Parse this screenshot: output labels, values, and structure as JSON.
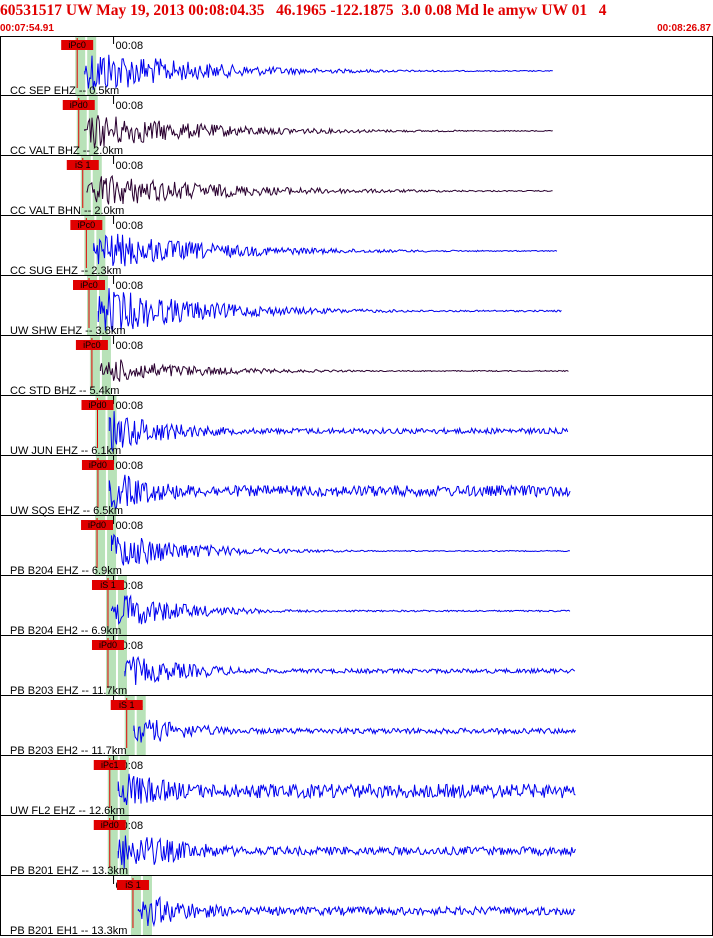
{
  "header": {
    "title": "60531517 UW May 19, 2013 00:08:04.35   46.1965 -122.1875  3.0 0.08 Md le amyw UW 01   4",
    "start_time": "00:07:54.91",
    "end_time": "00:08:26.87"
  },
  "colors": {
    "trace_blue": "#0000ee",
    "trace_dark": "#2a0030",
    "pick_red": "#e00000",
    "window_green": "#b8e2b8",
    "label_text": "#000000",
    "border": "#000000"
  },
  "chart_data": {
    "type": "seismogram",
    "time_range": [
      "00:07:54.91",
      "00:08:26.87"
    ],
    "time_tick_label": "00:08",
    "channels": [
      {
        "label": "CC SEP EHZ -- 0.5km",
        "pick": "iPc0",
        "pick_t": 3.46,
        "s_pick": null,
        "color": "blue",
        "on": 3.8,
        "off": 24.8,
        "amp": 1.0,
        "noise": 0.02,
        "decay": 4.5
      },
      {
        "label": "CC VALT BHZ -- 2.0km",
        "pick": "iPd0",
        "pick_t": 3.53,
        "s_pick": null,
        "color": "dark",
        "on": 3.8,
        "off": 24.8,
        "amp": 0.75,
        "noise": 0.02,
        "decay": 5.0
      },
      {
        "label": "CC VALT BHN -- 2.0km",
        "pick": "iS 1",
        "pick_t": 3.71,
        "s_pick": 3.71,
        "color": "dark",
        "on": 3.9,
        "off": 24.8,
        "amp": 0.7,
        "noise": 0.02,
        "decay": 5.5
      },
      {
        "label": "CC SUG EHZ -- 2.3km",
        "pick": "iPc0",
        "pick_t": 3.87,
        "s_pick": null,
        "color": "blue",
        "on": 4.2,
        "off": 25.0,
        "amp": 0.8,
        "noise": 0.02,
        "decay": 5.0
      },
      {
        "label": "UW SHW EHZ -- 3.8km",
        "pick": "iPc0",
        "pick_t": 3.99,
        "s_pick": null,
        "color": "blue",
        "on": 4.4,
        "off": 25.2,
        "amp": 1.0,
        "noise": 0.03,
        "decay": 4.5
      },
      {
        "label": "CC STD BHZ -- 5.4km",
        "pick": "iPc0",
        "pick_t": 4.12,
        "s_pick": null,
        "color": "dark",
        "on": 4.5,
        "off": 25.5,
        "amp": 0.55,
        "noise": 0.02,
        "decay": 4.0
      },
      {
        "label": "UW JUN EHZ -- 6.1km",
        "pick": "iPd0",
        "pick_t": 4.37,
        "s_pick": null,
        "color": "blue",
        "on": 4.9,
        "off": 25.5,
        "amp": 0.9,
        "noise": 0.1,
        "decay": 3.0
      },
      {
        "label": "UW SQS EHZ -- 6.5km",
        "pick": "iPd0",
        "pick_t": 4.39,
        "s_pick": null,
        "color": "blue",
        "on": 4.9,
        "off": 25.6,
        "amp": 0.85,
        "noise": 0.2,
        "decay": 3.0
      },
      {
        "label": "PB B204 EHZ -- 6.9km",
        "pick": "iPd0",
        "pick_t": 4.35,
        "s_pick": null,
        "color": "blue",
        "on": 5.0,
        "off": 25.6,
        "amp": 0.85,
        "noise": 0.02,
        "decay": 3.5
      },
      {
        "label": "PB B204 EH2 -- 6.9km",
        "pick": "iS 1",
        "pick_t": 4.84,
        "s_pick": 4.84,
        "color": "blue",
        "on": 5.0,
        "off": 25.6,
        "amp": 0.8,
        "noise": 0.03,
        "decay": 3.0
      },
      {
        "label": "PB B203 EHZ -- 11.7km",
        "pick": "iPd0",
        "pick_t": 4.84,
        "s_pick": null,
        "color": "blue",
        "on": 5.6,
        "off": 25.8,
        "amp": 0.7,
        "noise": 0.08,
        "decay": 3.5
      },
      {
        "label": "PB B203 EH2 -- 11.7km",
        "pick": "iS 1",
        "pick_t": 5.68,
        "s_pick": 5.68,
        "color": "blue",
        "on": 6.0,
        "off": 25.8,
        "amp": 0.6,
        "noise": 0.1,
        "decay": 3.0
      },
      {
        "label": "UW FL2 EHZ -- 12.6km",
        "pick": "iPc1",
        "pick_t": 4.92,
        "s_pick": null,
        "color": "blue",
        "on": 5.3,
        "off": 25.8,
        "amp": 0.85,
        "noise": 0.25,
        "decay": 3.0
      },
      {
        "label": "PB B201 EHZ -- 13.3km",
        "pick": "iPd0",
        "pick_t": 4.92,
        "s_pick": null,
        "color": "blue",
        "on": 5.3,
        "off": 25.8,
        "amp": 0.85,
        "noise": 0.15,
        "decay": 3.5
      },
      {
        "label": "PB B201 EH1 -- 13.3km",
        "pick": "iS 1",
        "pick_t": 5.96,
        "s_pick": 5.96,
        "color": "blue",
        "on": 6.2,
        "off": 25.8,
        "amp": 0.7,
        "noise": 0.15,
        "decay": 3.0
      }
    ]
  }
}
